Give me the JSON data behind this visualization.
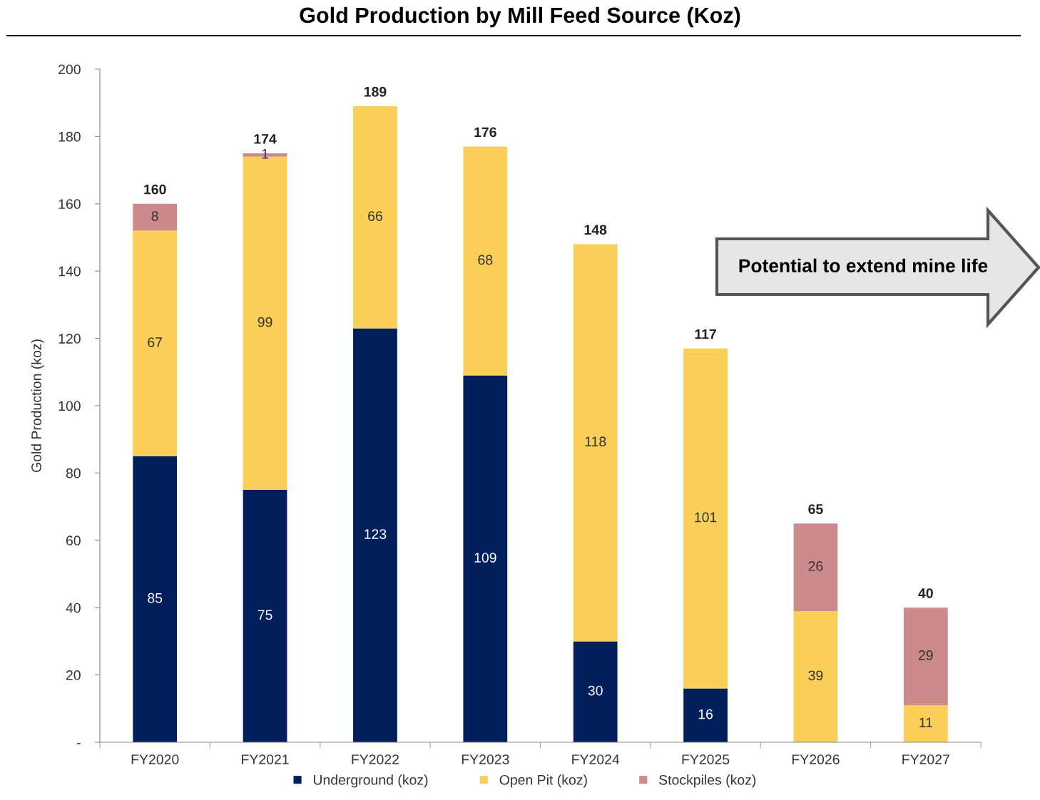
{
  "chart_data": {
    "type": "bar",
    "title": "Gold Production by Mill Feed Source (Koz)",
    "ylabel": "Gold Production (koz)",
    "categories": [
      "FY2020",
      "FY2021",
      "FY2022",
      "FY2023",
      "FY2024",
      "FY2025",
      "FY2026",
      "FY2027"
    ],
    "stacked": true,
    "series": [
      {
        "name": "Underground (koz)",
        "color": "#001f5b",
        "values": [
          85,
          75,
          123,
          109,
          30,
          16,
          0,
          0
        ],
        "value_labels": [
          "85",
          "75",
          "123",
          "109",
          "30",
          "16",
          null,
          null
        ]
      },
      {
        "name": "Open Pit (koz)",
        "color": "#f9cf57",
        "values": [
          67,
          99,
          66,
          68,
          118,
          101,
          39,
          11
        ],
        "value_labels": [
          "67",
          "99",
          "66",
          "68",
          "118",
          "101",
          "39",
          "11"
        ]
      },
      {
        "name": "Stockpiles (koz)",
        "color": "#cc8a8a",
        "values": [
          8,
          1,
          0,
          0,
          0,
          0,
          26,
          29
        ],
        "value_labels": [
          "8",
          "1",
          null,
          null,
          null,
          null,
          "26",
          "29"
        ]
      }
    ],
    "totals": [
      "160",
      "174",
      "189",
      "176",
      "148",
      "117",
      "65",
      "40"
    ],
    "ylim": [
      0,
      200
    ],
    "yticks": [
      {
        "value": 0,
        "label": "-"
      },
      20,
      40,
      60,
      80,
      100,
      120,
      140,
      160,
      180,
      200
    ],
    "grid": false,
    "legend": "bottom",
    "annotations": [
      "Potential to extend mine life"
    ]
  }
}
